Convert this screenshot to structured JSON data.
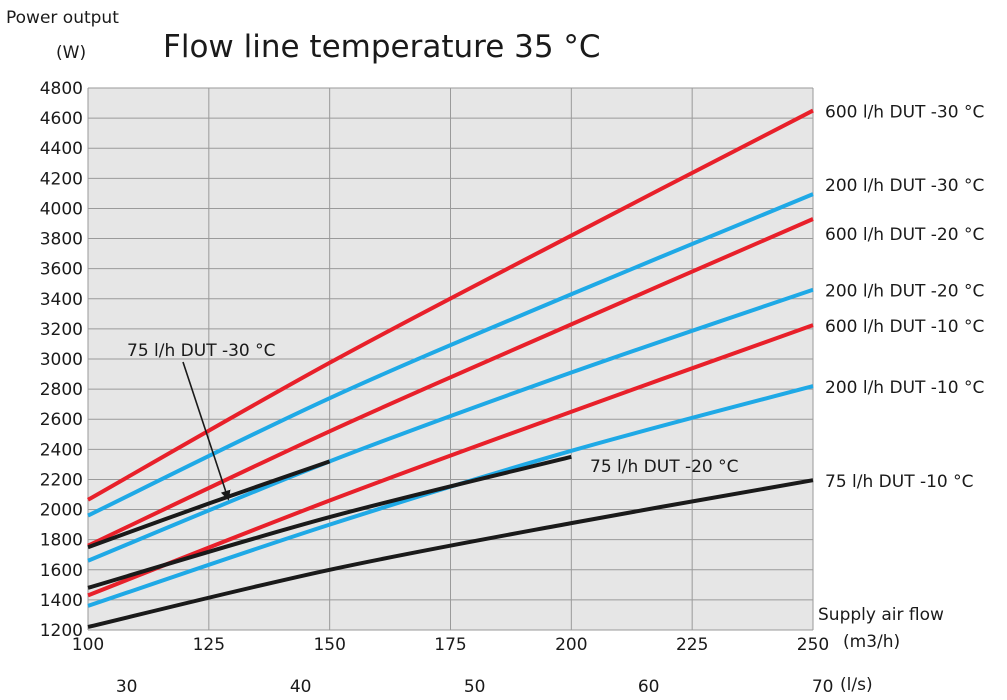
{
  "chart_data": {
    "type": "line",
    "title": "Flow line temperature 35 °C",
    "ylabel": "Power output",
    "yunit": "(W)",
    "xlabel": "Supply air flow",
    "xunit_top": "(m3/h)",
    "xunit_bottom": "(l/s)",
    "xlim": [
      100,
      250
    ],
    "ylim": [
      1200,
      4800
    ],
    "xticks": [
      100,
      125,
      150,
      175,
      200,
      225,
      250
    ],
    "xticks_ls": [
      {
        "value": 30,
        "m3h": 108
      },
      {
        "value": 40,
        "m3h": 144
      },
      {
        "value": 50,
        "m3h": 180
      },
      {
        "value": 60,
        "m3h": 216
      },
      {
        "value": 70,
        "m3h": 252
      }
    ],
    "yticks": [
      1200,
      1400,
      1600,
      1800,
      2000,
      2200,
      2400,
      2600,
      2800,
      3000,
      3200,
      3400,
      3600,
      3800,
      4000,
      4200,
      4400,
      4600,
      4800
    ],
    "grid": true,
    "colors": {
      "red": "#e8202a",
      "blue": "#1fa9e6",
      "black": "#1a1a1a",
      "grid": "#9a9a9a",
      "plot_bg": "#e6e6e6"
    },
    "series": [
      {
        "name": "600 l/h DUT -30 °C",
        "color": "red",
        "x": [
          100,
          150,
          200,
          250
        ],
        "y": [
          2065,
          2975,
          3820,
          4650
        ]
      },
      {
        "name": "200 l/h DUT -30 °C",
        "color": "blue",
        "x": [
          100,
          150,
          200,
          250
        ],
        "y": [
          1960,
          2740,
          3430,
          4095
        ]
      },
      {
        "name": "600 l/h DUT -20 °C",
        "color": "red",
        "x": [
          100,
          150,
          200,
          250
        ],
        "y": [
          1760,
          2520,
          3230,
          3930
        ]
      },
      {
        "name": "200 l/h DUT -20 °C",
        "color": "blue",
        "x": [
          100,
          150,
          200,
          250
        ],
        "y": [
          1660,
          2320,
          2910,
          3460
        ]
      },
      {
        "name": "600 l/h DUT -10 °C",
        "color": "red",
        "x": [
          100,
          150,
          200,
          250
        ],
        "y": [
          1430,
          2060,
          2650,
          3225
        ]
      },
      {
        "name": "200 l/h DUT -10 °C",
        "color": "blue",
        "x": [
          100,
          150,
          200,
          250
        ],
        "y": [
          1360,
          1900,
          2390,
          2820
        ]
      },
      {
        "name": "75 l/h DUT -30 °C",
        "color": "black",
        "x": [
          100,
          125,
          150
        ],
        "y": [
          1750,
          2040,
          2320
        ]
      },
      {
        "name": "75 l/h DUT -20 °C",
        "color": "black",
        "x": [
          100,
          150,
          200
        ],
        "y": [
          1480,
          1950,
          2350
        ]
      },
      {
        "name": "75 l/h DUT -10 °C",
        "color": "black",
        "x": [
          100,
          150,
          200,
          250
        ],
        "y": [
          1220,
          1600,
          1910,
          2195
        ]
      }
    ],
    "annotations": [
      {
        "text": "75 l/h DUT -30 °C",
        "series": "75 l/h DUT -30 °C"
      },
      {
        "text": "75 l/h DUT -20 °C",
        "series": "75 l/h DUT -20 °C"
      }
    ]
  }
}
